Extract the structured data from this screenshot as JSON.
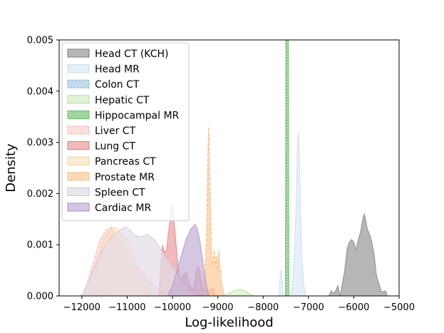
{
  "chart_data": {
    "type": "area",
    "xlabel": "Log-likelihood",
    "ylabel": "Density",
    "xlim": [
      -12500,
      -5000
    ],
    "ylim": [
      0,
      0.005
    ],
    "xticks": [
      -12000,
      -11000,
      -10000,
      -9000,
      -8000,
      -7000,
      -6000,
      -5000
    ],
    "xtick_labels": [
      "−12000",
      "−11000",
      "−10000",
      "−9000",
      "−8000",
      "−7000",
      "−6000",
      "−5000"
    ],
    "yticks": [
      0,
      0.001,
      0.002,
      0.003,
      0.004,
      0.005
    ],
    "ytick_labels": [
      "0.000",
      "0.001",
      "0.002",
      "0.003",
      "0.004",
      "0.005"
    ],
    "grid": false,
    "legend_position": "upper-left",
    "series": [
      {
        "name": "Head CT (KCH)",
        "color": "#999999",
        "alpha": 0.7,
        "line_color": "#7a7a7a",
        "points": [
          [
            -6550,
            0
          ],
          [
            -6500,
            0.0001
          ],
          [
            -6450,
            5e-05
          ],
          [
            -6400,
            0.0001
          ],
          [
            -6350,
            0.0002
          ],
          [
            -6300,
            0
          ],
          [
            -6280,
            0.0001
          ],
          [
            -6200,
            0.0005
          ],
          [
            -6150,
            0.0009
          ],
          [
            -6100,
            0.00105
          ],
          [
            -6050,
            0.0011
          ],
          [
            -6000,
            0.00105
          ],
          [
            -5950,
            0.0009
          ],
          [
            -5900,
            0.0011
          ],
          [
            -5850,
            0.00125
          ],
          [
            -5800,
            0.0015
          ],
          [
            -5770,
            0.0016
          ],
          [
            -5740,
            0.0015
          ],
          [
            -5700,
            0.0013
          ],
          [
            -5650,
            0.0012
          ],
          [
            -5600,
            0.00105
          ],
          [
            -5550,
            0.0008
          ],
          [
            -5500,
            0.0004
          ],
          [
            -5450,
            0.00025
          ],
          [
            -5400,
            0.0001
          ],
          [
            -5350,
            8e-05
          ],
          [
            -5300,
            0.0001
          ],
          [
            -5260,
            0
          ]
        ]
      },
      {
        "name": "Head MR",
        "color": "#dbeaf6",
        "alpha": 0.7,
        "line_color": "#c5dbee",
        "points": [
          [
            -7650,
            0
          ],
          [
            -7620,
            0.00045
          ],
          [
            -7600,
            0.0005
          ],
          [
            -7580,
            0.00035
          ],
          [
            -7560,
            0.0001
          ],
          [
            -7540,
            0
          ],
          [
            -7400,
            0
          ],
          [
            -7350,
            0.0002
          ],
          [
            -7300,
            0.001
          ],
          [
            -7260,
            0.0022
          ],
          [
            -7240,
            0.0031
          ],
          [
            -7220,
            0.0032
          ],
          [
            -7200,
            0.0028
          ],
          [
            -7180,
            0.0018
          ],
          [
            -7150,
            0.0008
          ],
          [
            -7100,
            0.0002
          ],
          [
            -7050,
            0
          ]
        ]
      },
      {
        "name": "Colon CT",
        "color": "#a8cce4",
        "alpha": 0.7,
        "line_color": "#7aaed4",
        "dashed": true,
        "points": [
          [
            -12050,
            0
          ],
          [
            -11950,
            3e-05
          ],
          [
            -11800,
            5e-05
          ],
          [
            -11600,
            4e-05
          ],
          [
            -11400,
            2e-05
          ],
          [
            -11200,
            0
          ]
        ]
      },
      {
        "name": "Hepatic CT",
        "color": "#d4efc5",
        "alpha": 0.7,
        "line_color": "#b0dc98",
        "points": [
          [
            -8900,
            0
          ],
          [
            -8800,
            3e-05
          ],
          [
            -8700,
            8e-05
          ],
          [
            -8600,
            0.00012
          ],
          [
            -8500,
            0.00013
          ],
          [
            -8400,
            0.0001
          ],
          [
            -8300,
            4e-05
          ],
          [
            -8200,
            0
          ]
        ]
      },
      {
        "name": "Hippocampal MR",
        "color": "#8fce8f",
        "alpha": 0.7,
        "line_color": "#6cbf6c",
        "hatched": true,
        "points": [
          [
            -7510,
            0
          ],
          [
            -7500,
            0.005
          ],
          [
            -7440,
            0.005
          ],
          [
            -7430,
            0
          ]
        ]
      },
      {
        "name": "Liver CT",
        "color": "#fbd0cc",
        "alpha": 0.7,
        "line_color": "#f3a9a2",
        "dashed": true,
        "points": [
          [
            -12000,
            0
          ],
          [
            -11900,
            0.0002
          ],
          [
            -11800,
            0.0005
          ],
          [
            -11700,
            0.0008
          ],
          [
            -11600,
            0.0011
          ],
          [
            -11450,
            0.0013
          ],
          [
            -11350,
            0.00135
          ],
          [
            -11250,
            0.0012
          ],
          [
            -11150,
            0.0011
          ],
          [
            -11050,
            0.00095
          ],
          [
            -10950,
            0.0008
          ],
          [
            -10800,
            0.0006
          ],
          [
            -10600,
            0.0004
          ],
          [
            -10400,
            0.0002
          ],
          [
            -10200,
            0.0001
          ],
          [
            -10000,
            0
          ]
        ]
      },
      {
        "name": "Lung CT",
        "color": "#ec9c9c",
        "alpha": 0.7,
        "line_color": "#e07a7a",
        "points": [
          [
            -10300,
            0
          ],
          [
            -10250,
            0.0007
          ],
          [
            -10220,
            0.001
          ],
          [
            -10180,
            0.00085
          ],
          [
            -10130,
            0.0009
          ],
          [
            -10080,
            0.0013
          ],
          [
            -10030,
            0.00165
          ],
          [
            -10000,
            0.0018
          ],
          [
            -9970,
            0.0015
          ],
          [
            -9930,
            0.0011
          ],
          [
            -9880,
            0.0006
          ],
          [
            -9820,
            0.0003
          ],
          [
            -9760,
            0.0004
          ],
          [
            -9700,
            0.00045
          ],
          [
            -9650,
            0.0003
          ],
          [
            -9600,
            0.0002
          ],
          [
            -9550,
            0.0001
          ],
          [
            -9500,
            0.0003
          ],
          [
            -9450,
            0.0006
          ],
          [
            -9400,
            0.0005
          ],
          [
            -9350,
            0.0002
          ],
          [
            -9300,
            0.0001
          ],
          [
            -9200,
            0.0001
          ],
          [
            -9100,
            0.00015
          ],
          [
            -9050,
            0
          ]
        ]
      },
      {
        "name": "Pancreas CT",
        "color": "#fde3c0",
        "alpha": 0.7,
        "line_color": "#f9cf98",
        "points": [
          [
            -11800,
            0
          ],
          [
            -11700,
            0.0004
          ],
          [
            -11600,
            0.0008
          ],
          [
            -11500,
            0.0011
          ],
          [
            -11400,
            0.00125
          ],
          [
            -11300,
            0.00135
          ],
          [
            -11200,
            0.0013
          ],
          [
            -11100,
            0.0012
          ],
          [
            -11000,
            0.0011
          ],
          [
            -10900,
            0.0009
          ],
          [
            -10800,
            0.0006
          ],
          [
            -10700,
            0.0003
          ],
          [
            -10600,
            0.0001
          ],
          [
            -10500,
            0
          ]
        ]
      },
      {
        "name": "Prostate MR",
        "color": "#fcc995",
        "alpha": 0.7,
        "line_color": "#f7aa5e",
        "dashed": true,
        "points": [
          [
            -9350,
            0
          ],
          [
            -9300,
            0.0002
          ],
          [
            -9250,
            0.0012
          ],
          [
            -9220,
            0.0028
          ],
          [
            -9200,
            0.0033
          ],
          [
            -9180,
            0.0026
          ],
          [
            -9150,
            0.0012
          ],
          [
            -9120,
            0.0006
          ],
          [
            -9080,
            0.0009
          ],
          [
            -9060,
            0.0006
          ],
          [
            -9030,
            0.0008
          ],
          [
            -9000,
            0.0005
          ],
          [
            -8980,
            0.0009
          ],
          [
            -8950,
            0.0006
          ],
          [
            -8920,
            0.0003
          ],
          [
            -8880,
            0.0001
          ],
          [
            -8850,
            0
          ]
        ]
      },
      {
        "name": "Spleen CT",
        "color": "#e4dde8",
        "alpha": 0.7,
        "line_color": "#cdc1d6",
        "points": [
          [
            -12000,
            0
          ],
          [
            -11800,
            0.0004
          ],
          [
            -11600,
            0.0008
          ],
          [
            -11400,
            0.0011
          ],
          [
            -11200,
            0.00125
          ],
          [
            -11050,
            0.00135
          ],
          [
            -10950,
            0.0013
          ],
          [
            -10850,
            0.0012
          ],
          [
            -10700,
            0.00115
          ],
          [
            -10550,
            0.0012
          ],
          [
            -10400,
            0.0011
          ],
          [
            -10250,
            0.0009
          ],
          [
            -10100,
            0.0007
          ],
          [
            -9950,
            0.0005
          ],
          [
            -9800,
            0.0003
          ],
          [
            -9650,
            0.0001
          ],
          [
            -9500,
            0
          ]
        ]
      },
      {
        "name": "Cardiac MR",
        "color": "#c3aed6",
        "alpha": 0.7,
        "line_color": "#a88cc5",
        "points": [
          [
            -10100,
            0
          ],
          [
            -10000,
            0.0002
          ],
          [
            -9900,
            0.0005
          ],
          [
            -9800,
            0.0008
          ],
          [
            -9700,
            0.0011
          ],
          [
            -9600,
            0.0013
          ],
          [
            -9500,
            0.0014
          ],
          [
            -9450,
            0.0013
          ],
          [
            -9400,
            0.0011
          ],
          [
            -9350,
            0.0008
          ],
          [
            -9300,
            0.0005
          ],
          [
            -9250,
            0.0002
          ],
          [
            -9200,
            0
          ]
        ]
      }
    ]
  }
}
